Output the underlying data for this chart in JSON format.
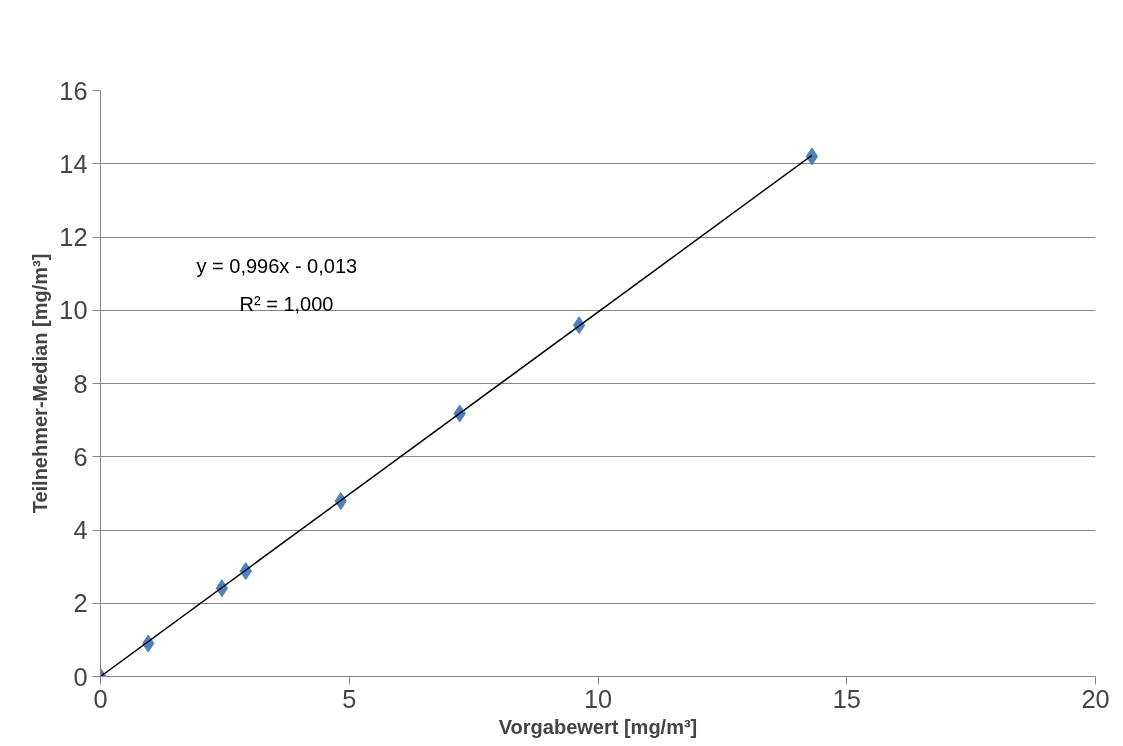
{
  "chart_data": {
    "type": "scatter",
    "xlabel": "Vorgabewert [mg/m³]",
    "ylabel": "Teilnehmer-Median [mg/m³]",
    "annotations": [
      "y = 0,996x - 0,013",
      "R² = 1,000"
    ],
    "xlim": [
      0,
      20
    ],
    "xticks": [
      0,
      5,
      10,
      15,
      20
    ],
    "ylim": [
      0,
      16
    ],
    "yticks": [
      0,
      2,
      4,
      6,
      8,
      10,
      12,
      14,
      16
    ],
    "grid": "y",
    "series": [
      {
        "marker": "diamond",
        "color": "#4f81bd",
        "x": [
          0,
          0.96,
          2.44,
          2.92,
          4.83,
          7.22,
          9.62,
          14.3
        ],
        "values": [
          0,
          0.9,
          2.41,
          2.88,
          4.79,
          7.18,
          9.59,
          14.2
        ]
      },
      {
        "type": "line",
        "color": "#000000",
        "x": [
          0,
          14.3
        ],
        "values": [
          0,
          14.23
        ]
      }
    ]
  }
}
